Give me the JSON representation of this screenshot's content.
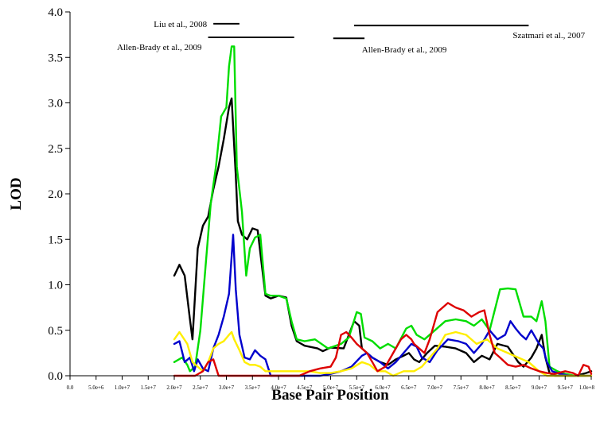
{
  "chart_data": {
    "type": "line",
    "xlabel": "Base Pair Position",
    "ylabel": "LOD",
    "xlim": [
      0,
      100000000
    ],
    "ylim": [
      0,
      4.0
    ],
    "grid": false,
    "legend": "none",
    "x_ticks": [
      {
        "value": 0,
        "label": "0.0"
      },
      {
        "value": 5000000,
        "label": "5.0e+6"
      },
      {
        "value": 10000000,
        "label": "1.0e+7"
      },
      {
        "value": 15000000,
        "label": "1.5e+7"
      },
      {
        "value": 20000000,
        "label": "2.0e+7"
      },
      {
        "value": 25000000,
        "label": "2.5e+7"
      },
      {
        "value": 30000000,
        "label": "3.0e+7"
      },
      {
        "value": 35000000,
        "label": "3.5e+7"
      },
      {
        "value": 40000000,
        "label": "4.0e+7"
      },
      {
        "value": 45000000,
        "label": "4.5e+7"
      },
      {
        "value": 50000000,
        "label": "5.0e+7"
      },
      {
        "value": 55000000,
        "label": "5.5e+7"
      },
      {
        "value": 60000000,
        "label": "6.0e+7"
      },
      {
        "value": 65000000,
        "label": "6.5e+7"
      },
      {
        "value": 70000000,
        "label": "7.0e+7"
      },
      {
        "value": 75000000,
        "label": "7.5e+7"
      },
      {
        "value": 80000000,
        "label": "8.0e+7"
      },
      {
        "value": 85000000,
        "label": "8.5e+7"
      },
      {
        "value": 90000000,
        "label": "9.0e+7"
      },
      {
        "value": 95000000,
        "label": "9.5e+7"
      },
      {
        "value": 100000000,
        "label": "1.0e+8"
      }
    ],
    "y_ticks": [
      {
        "value": 0,
        "label": "0.0"
      },
      {
        "value": 0.5,
        "label": "0.5"
      },
      {
        "value": 1.0,
        "label": "1.0"
      },
      {
        "value": 1.5,
        "label": "1.5"
      },
      {
        "value": 2.0,
        "label": "2.0"
      },
      {
        "value": 2.5,
        "label": "2.5"
      },
      {
        "value": 3.0,
        "label": "3.0"
      },
      {
        "value": 3.5,
        "label": "3.5"
      },
      {
        "value": 4.0,
        "label": "4.0"
      }
    ],
    "annotations": [
      {
        "label": "Liu et al., 2008",
        "x_start": 27500000,
        "x_end": 32500000,
        "y": 3.87,
        "label_side": "left"
      },
      {
        "label": "Allen-Brady et al., 2009",
        "x_start": 26500000,
        "x_end": 43000000,
        "y": 3.72,
        "label_side": "left"
      },
      {
        "label": "Allen-Brady et al., 2009",
        "x_start": 50500000,
        "x_end": 56500000,
        "y": 3.71,
        "label_side": "below-right"
      },
      {
        "label": "Szatmari et al., 2007",
        "x_start": 54500000,
        "x_end": 88000000,
        "y": 3.85,
        "label_side": "below-right"
      }
    ],
    "series": [
      {
        "color": "#000000",
        "x": [
          20000000,
          21000000,
          22000000,
          23000000,
          23500000,
          24000000,
          24500000,
          25500000,
          26500000,
          27500000,
          28500000,
          29500000,
          30500000,
          31000000,
          31800000,
          32200000,
          33000000,
          34000000,
          35000000,
          36000000,
          37500000,
          38500000,
          40000000,
          41500000,
          42500000,
          43500000,
          45000000,
          47500000,
          48500000,
          50000000,
          52500000,
          54500000,
          55500000,
          56000000,
          57000000,
          58000000,
          59500000,
          61000000,
          62500000,
          64000000,
          65000000,
          66000000,
          67000000,
          68500000,
          70000000,
          72000000,
          74000000,
          76000000,
          77500000,
          79000000,
          80500000,
          82000000,
          84000000,
          86000000,
          87000000,
          88500000,
          89500000,
          90500000,
          91200000,
          92000000,
          93000000,
          95000000,
          97000000,
          99000000,
          100000000
        ],
        "y": [
          1.1,
          1.22,
          1.1,
          0.62,
          0.4,
          0.9,
          1.4,
          1.65,
          1.75,
          2.05,
          2.3,
          2.6,
          2.95,
          3.05,
          2.2,
          1.7,
          1.55,
          1.5,
          1.62,
          1.6,
          0.88,
          0.85,
          0.88,
          0.86,
          0.55,
          0.38,
          0.33,
          0.3,
          0.27,
          0.31,
          0.3,
          0.6,
          0.55,
          0.3,
          0.25,
          0.2,
          0.15,
          0.12,
          0.18,
          0.22,
          0.25,
          0.18,
          0.15,
          0.25,
          0.33,
          0.32,
          0.3,
          0.25,
          0.15,
          0.22,
          0.18,
          0.35,
          0.32,
          0.15,
          0.1,
          0.2,
          0.3,
          0.45,
          0.2,
          0.03,
          0.0,
          0.0,
          0.0,
          0.03,
          0.05
        ]
      },
      {
        "color": "#00dd00",
        "x": [
          20000000,
          21500000,
          22500000,
          23000000,
          24000000,
          25000000,
          26000000,
          27000000,
          28000000,
          29000000,
          30000000,
          30500000,
          31000000,
          31500000,
          32000000,
          33000000,
          33800000,
          34500000,
          35500000,
          36500000,
          37500000,
          38500000,
          40000000,
          41500000,
          42500000,
          43500000,
          45000000,
          47000000,
          49500000,
          52000000,
          53500000,
          55000000,
          55800000,
          56500000,
          58000000,
          59500000,
          61000000,
          62500000,
          64500000,
          65500000,
          66500000,
          68000000,
          70000000,
          72000000,
          74000000,
          76000000,
          77500000,
          79000000,
          80500000,
          82500000,
          84000000,
          85500000,
          87000000,
          88500000,
          89500000,
          90500000,
          91200000,
          92000000,
          93500000,
          95000000,
          97000000,
          99000000
        ],
        "y": [
          0.15,
          0.2,
          0.12,
          0.05,
          0.1,
          0.5,
          1.2,
          1.9,
          2.3,
          2.85,
          2.95,
          3.4,
          3.62,
          3.62,
          2.3,
          1.8,
          1.1,
          1.4,
          1.52,
          1.55,
          0.9,
          0.88,
          0.88,
          0.85,
          0.6,
          0.4,
          0.38,
          0.4,
          0.3,
          0.35,
          0.42,
          0.7,
          0.68,
          0.42,
          0.38,
          0.3,
          0.35,
          0.3,
          0.52,
          0.55,
          0.45,
          0.4,
          0.5,
          0.6,
          0.62,
          0.6,
          0.55,
          0.62,
          0.5,
          0.95,
          0.96,
          0.95,
          0.65,
          0.65,
          0.6,
          0.82,
          0.6,
          0.1,
          0.05,
          0.02,
          0.0,
          0.0
        ]
      },
      {
        "color": "#0000cc",
        "x": [
          20000000,
          21000000,
          22000000,
          23000000,
          23800000,
          24500000,
          25500000,
          26500000,
          27500000,
          28500000,
          29500000,
          30500000,
          31300000,
          31800000,
          32500000,
          33500000,
          34500000,
          35500000,
          36500000,
          37500000,
          38500000,
          40000000,
          42000000,
          44000000,
          46000000,
          48000000,
          50000000,
          52000000,
          54000000,
          56000000,
          57000000,
          58000000,
          59500000,
          61000000,
          62500000,
          64000000,
          65500000,
          66500000,
          67500000,
          69000000,
          70500000,
          72500000,
          74500000,
          76000000,
          77500000,
          79000000,
          80500000,
          82000000,
          83500000,
          84500000,
          85500000,
          86500000,
          87500000,
          88500000,
          89500000,
          90000000,
          90800000,
          91500000,
          92500000,
          94000000,
          96000000,
          98000000,
          100000000
        ],
        "y": [
          0.35,
          0.38,
          0.15,
          0.2,
          0.05,
          0.18,
          0.08,
          0.05,
          0.3,
          0.45,
          0.65,
          0.9,
          1.55,
          0.95,
          0.45,
          0.2,
          0.18,
          0.28,
          0.22,
          0.18,
          0.0,
          0.0,
          0.0,
          0.0,
          0.0,
          0.0,
          0.02,
          0.05,
          0.1,
          0.22,
          0.25,
          0.2,
          0.15,
          0.08,
          0.15,
          0.25,
          0.35,
          0.32,
          0.2,
          0.15,
          0.28,
          0.4,
          0.38,
          0.35,
          0.25,
          0.35,
          0.5,
          0.4,
          0.45,
          0.6,
          0.52,
          0.45,
          0.4,
          0.5,
          0.4,
          0.35,
          0.3,
          0.15,
          0.05,
          0.02,
          0.0,
          0.0,
          0.0
        ]
      },
      {
        "color": "#ffee00",
        "x": [
          20000000,
          21000000,
          22500000,
          23500000,
          24500000,
          25500000,
          26500000,
          27500000,
          28500000,
          29500000,
          30500000,
          31000000,
          31500000,
          32500000,
          33500000,
          34500000,
          35500000,
          36500000,
          37500000,
          39000000,
          41000000,
          43000000,
          44500000,
          46000000,
          48000000,
          50000000,
          52000000,
          54000000,
          56000000,
          57500000,
          59000000,
          60500000,
          62000000,
          64000000,
          66000000,
          67500000,
          69000000,
          70500000,
          72000000,
          74000000,
          76000000,
          78000000,
          80000000,
          82000000,
          84000000,
          86000000,
          88000000,
          90000000,
          91500000,
          93000000,
          95000000,
          97000000,
          100000000
        ],
        "y": [
          0.4,
          0.48,
          0.35,
          0.15,
          0.1,
          0.05,
          0.15,
          0.3,
          0.35,
          0.38,
          0.45,
          0.48,
          0.4,
          0.28,
          0.15,
          0.12,
          0.12,
          0.1,
          0.05,
          0.05,
          0.05,
          0.05,
          0.05,
          0.05,
          0.03,
          0.03,
          0.05,
          0.08,
          0.15,
          0.12,
          0.05,
          0.05,
          0.0,
          0.05,
          0.05,
          0.1,
          0.2,
          0.3,
          0.45,
          0.48,
          0.45,
          0.35,
          0.4,
          0.3,
          0.25,
          0.2,
          0.15,
          0.05,
          0.0,
          0.0,
          0.0,
          0.0,
          0.0
        ]
      },
      {
        "color": "#dd0000",
        "x": [
          20000000,
          24000000,
          25500000,
          26500000,
          27500000,
          28500000,
          29500000,
          30500000,
          32000000,
          34000000,
          38000000,
          42000000,
          44000000,
          46000000,
          48000000,
          50000000,
          51000000,
          52000000,
          53000000,
          54000000,
          55000000,
          56000000,
          57000000,
          58000000,
          59000000,
          60500000,
          62000000,
          63500000,
          64500000,
          65500000,
          66000000,
          67000000,
          68000000,
          69000000,
          70500000,
          71500000,
          72500000,
          74000000,
          75500000,
          77000000,
          78500000,
          79500000,
          80500000,
          81500000,
          82500000,
          84000000,
          85500000,
          87000000,
          88500000,
          90000000,
          91500000,
          93000000,
          95000000,
          96500000,
          97500000,
          98500000,
          99500000,
          100000000
        ],
        "y": [
          0.0,
          0.0,
          0.05,
          0.15,
          0.18,
          0.0,
          0.0,
          0.0,
          0.0,
          0.0,
          0.0,
          0.0,
          0.0,
          0.05,
          0.08,
          0.1,
          0.2,
          0.45,
          0.48,
          0.42,
          0.35,
          0.3,
          0.25,
          0.15,
          0.05,
          0.1,
          0.25,
          0.4,
          0.45,
          0.4,
          0.35,
          0.3,
          0.25,
          0.4,
          0.7,
          0.75,
          0.8,
          0.75,
          0.72,
          0.65,
          0.7,
          0.72,
          0.45,
          0.25,
          0.2,
          0.12,
          0.1,
          0.12,
          0.08,
          0.05,
          0.03,
          0.02,
          0.05,
          0.03,
          0.0,
          0.12,
          0.1,
          0.02
        ]
      }
    ]
  }
}
